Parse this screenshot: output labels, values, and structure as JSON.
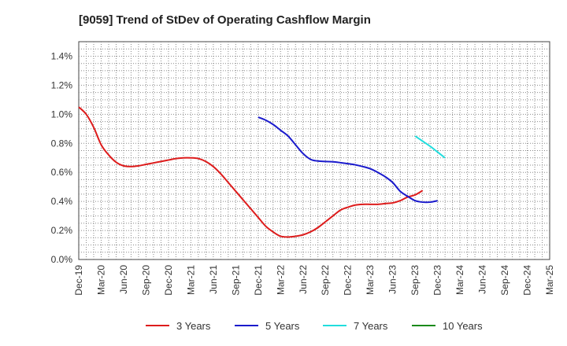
{
  "chart_data": {
    "type": "line",
    "title": "[9059]  Trend of StDev of Operating Cashflow Margin",
    "xlabel": "",
    "ylabel": "",
    "x_ticks": [
      "Dec-19",
      "Mar-20",
      "Jun-20",
      "Sep-20",
      "Dec-20",
      "Mar-21",
      "Jun-21",
      "Sep-21",
      "Dec-21",
      "Mar-22",
      "Jun-22",
      "Sep-22",
      "Dec-22",
      "Mar-23",
      "Jun-23",
      "Sep-23",
      "Dec-23",
      "Mar-24",
      "Jun-24",
      "Sep-24",
      "Dec-24",
      "Mar-25"
    ],
    "y_ticks": [
      "0.0%",
      "0.2%",
      "0.4%",
      "0.6%",
      "0.8%",
      "1.0%",
      "1.2%",
      "1.4%"
    ],
    "ylim": [
      0,
      1.5
    ],
    "grid": true,
    "legend_position": "bottom",
    "series": [
      {
        "name": "3 Years",
        "color": "#dd1c1c",
        "points": [
          [
            "Dec-19",
            1.05
          ],
          [
            "Jan-20",
            1.0
          ],
          [
            "Feb-20",
            0.91
          ],
          [
            "Mar-20",
            0.79
          ],
          [
            "Apr-20",
            0.72
          ],
          [
            "May-20",
            0.67
          ],
          [
            "Jun-20",
            0.645
          ],
          [
            "Jul-20",
            0.64
          ],
          [
            "Aug-20",
            0.645
          ],
          [
            "Sep-20",
            0.655
          ],
          [
            "Oct-20",
            0.665
          ],
          [
            "Nov-20",
            0.675
          ],
          [
            "Dec-20",
            0.685
          ],
          [
            "Jan-21",
            0.695
          ],
          [
            "Feb-21",
            0.7
          ],
          [
            "Mar-21",
            0.7
          ],
          [
            "Apr-21",
            0.695
          ],
          [
            "May-21",
            0.675
          ],
          [
            "Jun-21",
            0.64
          ],
          [
            "Jul-21",
            0.59
          ],
          [
            "Aug-21",
            0.53
          ],
          [
            "Sep-21",
            0.47
          ],
          [
            "Oct-21",
            0.41
          ],
          [
            "Nov-21",
            0.35
          ],
          [
            "Dec-21",
            0.29
          ],
          [
            "Jan-22",
            0.23
          ],
          [
            "Feb-22",
            0.19
          ],
          [
            "Mar-22",
            0.16
          ],
          [
            "Apr-22",
            0.155
          ],
          [
            "May-22",
            0.16
          ],
          [
            "Jun-22",
            0.17
          ],
          [
            "Jul-22",
            0.19
          ],
          [
            "Aug-22",
            0.22
          ],
          [
            "Sep-22",
            0.26
          ],
          [
            "Oct-22",
            0.3
          ],
          [
            "Nov-22",
            0.34
          ],
          [
            "Dec-22",
            0.36
          ],
          [
            "Jan-23",
            0.375
          ],
          [
            "Feb-23",
            0.38
          ],
          [
            "Mar-23",
            0.38
          ],
          [
            "Apr-23",
            0.38
          ],
          [
            "May-23",
            0.385
          ],
          [
            "Jun-23",
            0.39
          ],
          [
            "Jul-23",
            0.405
          ],
          [
            "Aug-23",
            0.43
          ],
          [
            "Sep-23",
            0.445
          ],
          [
            "Oct-23",
            0.475
          ]
        ]
      },
      {
        "name": "5 Years",
        "color": "#1a1acc",
        "points": [
          [
            "Dec-21",
            0.98
          ],
          [
            "Jan-22",
            0.96
          ],
          [
            "Feb-22",
            0.93
          ],
          [
            "Mar-22",
            0.89
          ],
          [
            "Apr-22",
            0.85
          ],
          [
            "May-22",
            0.79
          ],
          [
            "Jun-22",
            0.73
          ],
          [
            "Jul-22",
            0.69
          ],
          [
            "Aug-22",
            0.678
          ],
          [
            "Sep-22",
            0.675
          ],
          [
            "Oct-22",
            0.673
          ],
          [
            "Nov-22",
            0.667
          ],
          [
            "Dec-22",
            0.66
          ],
          [
            "Jan-23",
            0.652
          ],
          [
            "Feb-23",
            0.64
          ],
          [
            "Mar-23",
            0.625
          ],
          [
            "Apr-23",
            0.6
          ],
          [
            "May-23",
            0.57
          ],
          [
            "Jun-23",
            0.53
          ],
          [
            "Jul-23",
            0.47
          ],
          [
            "Aug-23",
            0.435
          ],
          [
            "Sep-23",
            0.405
          ],
          [
            "Oct-23",
            0.395
          ],
          [
            "Nov-23",
            0.395
          ],
          [
            "Dec-23",
            0.405
          ]
        ]
      },
      {
        "name": "7 Years",
        "color": "#22dddd",
        "points": [
          [
            "Sep-23",
            0.85
          ],
          [
            "Oct-23",
            0.815
          ],
          [
            "Nov-23",
            0.78
          ],
          [
            "Dec-23",
            0.74
          ],
          [
            "Jan-24",
            0.7
          ]
        ]
      },
      {
        "name": "10 Years",
        "color": "#1a8a1a",
        "points": []
      }
    ]
  }
}
